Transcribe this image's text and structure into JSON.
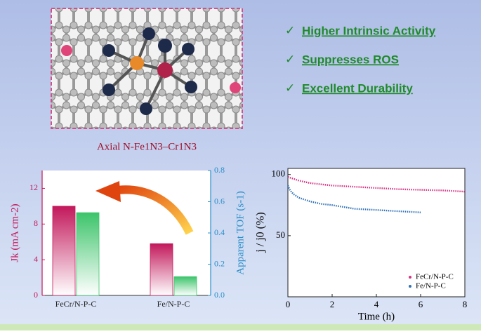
{
  "bullets": [
    "Higher Intrinsic Activity",
    "Suppresses ROS",
    "Excellent Durability"
  ],
  "caption": "Axial N-Fe1N3–Cr1N3",
  "chart_data": [
    {
      "type": "bar",
      "categories": [
        "FeCr/N-P-C",
        "Fe/N-P-C"
      ],
      "ylabel": "Jk (mA cm-2)",
      "y2label": "Apparent TOF (s-1)",
      "ylim": [
        0,
        14
      ],
      "yticks": [
        0,
        4,
        8,
        12
      ],
      "y2lim": [
        0,
        0.8
      ],
      "y2ticks": [
        {
          "value": 0,
          "label": "0.0"
        },
        0.2,
        0.4,
        0.6,
        0.8
      ],
      "series": [
        {
          "color": "#c2185b",
          "values": [
            10,
            5.8
          ]
        },
        {
          "color": "#3cc46a",
          "axis": "y2",
          "values": [
            0.53,
            0.12
          ]
        }
      ]
    },
    {
      "type": "line",
      "xlabel": "Time (h)",
      "ylabel": "j / j0 (%)",
      "xlim": [
        0,
        8
      ],
      "xticks": [
        0,
        2,
        4,
        6,
        8
      ],
      "ylim": [
        0,
        105
      ],
      "yticks": [
        50,
        100
      ],
      "series": [
        {
          "name": "FeCr/N-P-C",
          "color": "#d63384",
          "x": [
            0,
            0.5,
            1,
            1.5,
            2,
            3,
            4,
            5,
            6,
            7,
            8
          ],
          "values": [
            98,
            95,
            93,
            92,
            91,
            90,
            89,
            88,
            87.5,
            87,
            86
          ]
        },
        {
          "name": "Fe/N-P-C",
          "color": "#2f72b8",
          "x": [
            0,
            0.1,
            0.25,
            0.5,
            1,
            1.5,
            2,
            3,
            4,
            5,
            6
          ],
          "values": [
            91,
            87,
            84,
            81,
            78,
            76,
            75,
            72,
            71,
            70,
            69
          ]
        }
      ]
    }
  ]
}
